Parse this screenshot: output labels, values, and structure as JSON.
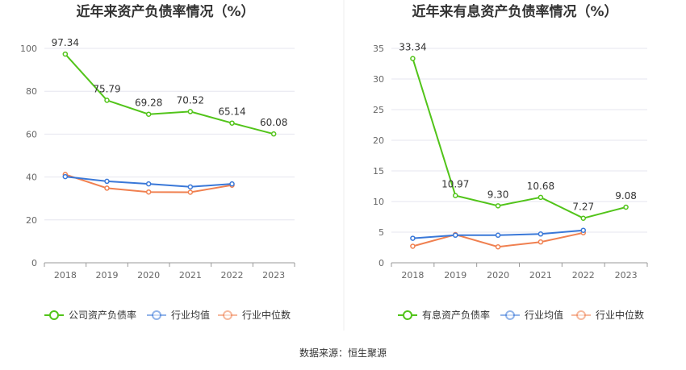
{
  "source_text": "数据来源：恒生聚源",
  "chart_data": [
    {
      "type": "line",
      "title": "近年来资产负债率情况（%）",
      "categories": [
        "2018",
        "2019",
        "2020",
        "2021",
        "2022",
        "2023"
      ],
      "ylim": [
        0,
        100
      ],
      "yticks": [
        0,
        20,
        40,
        60,
        80,
        100
      ],
      "grid": true,
      "legend_position": "bottom",
      "series": [
        {
          "name": "公司资产负债率",
          "color": "#52c41a",
          "values": [
            97.34,
            75.79,
            69.28,
            70.52,
            65.14,
            60.08
          ],
          "labels": [
            "97.34",
            "75.79",
            "69.28",
            "70.52",
            "65.14",
            "60.08"
          ]
        },
        {
          "name": "行业均值",
          "color": "#3a78d8",
          "values": [
            40.2,
            38.0,
            36.8,
            35.4,
            36.8,
            null
          ],
          "labels": null
        },
        {
          "name": "行业中位数",
          "color": "#f08050",
          "values": [
            41.2,
            34.8,
            33.0,
            32.9,
            36.2,
            null
          ],
          "labels": null
        }
      ]
    },
    {
      "type": "line",
      "title": "近年来有息资产负债率情况（%）",
      "categories": [
        "2018",
        "2019",
        "2020",
        "2021",
        "2022",
        "2023"
      ],
      "ylim": [
        0,
        35
      ],
      "yticks": [
        0,
        5,
        10,
        15,
        20,
        25,
        30,
        35
      ],
      "grid": true,
      "legend_position": "bottom",
      "series": [
        {
          "name": "有息资产负债率",
          "color": "#52c41a",
          "values": [
            33.34,
            10.97,
            9.3,
            10.68,
            7.27,
            9.08
          ],
          "labels": [
            "33.34",
            "10.97",
            "9.30",
            "10.68",
            "7.27",
            "9.08"
          ]
        },
        {
          "name": "行业均值",
          "color": "#3a78d8",
          "values": [
            4.0,
            4.5,
            4.5,
            4.7,
            5.3,
            null
          ],
          "labels": null
        },
        {
          "name": "行业中位数",
          "color": "#f08050",
          "values": [
            2.7,
            4.6,
            2.6,
            3.4,
            4.9,
            null
          ],
          "labels": null
        }
      ]
    }
  ]
}
